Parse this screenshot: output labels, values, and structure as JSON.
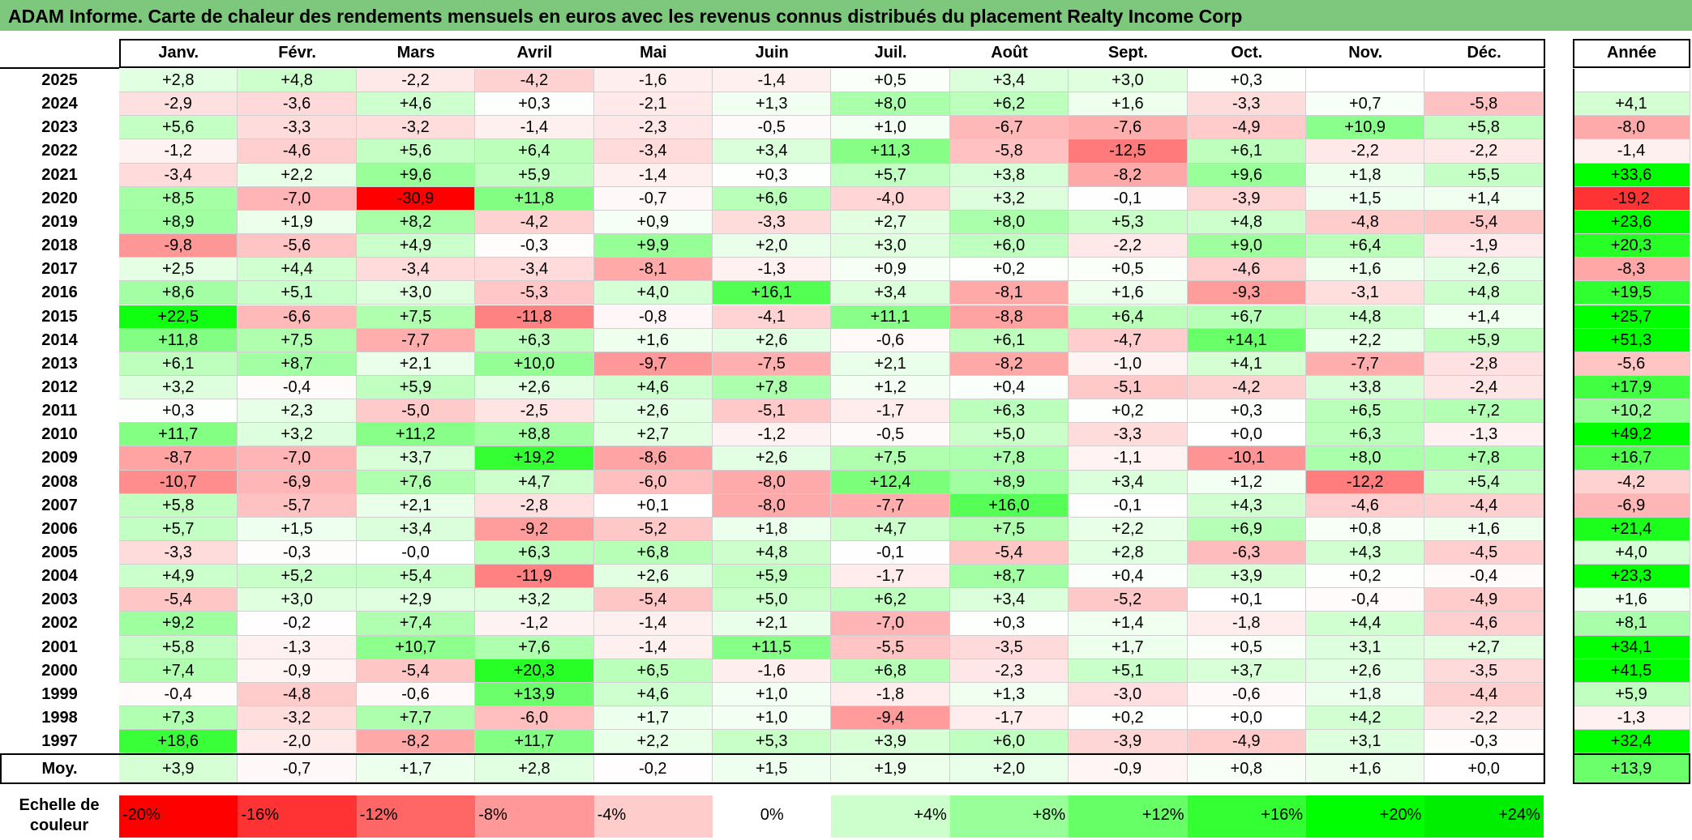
{
  "title": "ADAM Informe. Carte de chaleur des rendements mensuels en euros avec les revenus connus distribués du placement Realty Income Corp",
  "chart_data": {
    "type": "heatmap",
    "title": "ADAM Informe. Carte de chaleur des rendements mensuels en euros avec les revenus connus distribués du placement Realty Income Corp",
    "columns": [
      "Janv.",
      "Févr.",
      "Mars",
      "Avril",
      "Mai",
      "Juin",
      "Juil.",
      "Août",
      "Sept.",
      "Oct.",
      "Nov.",
      "Déc."
    ],
    "year_header": "Année",
    "average_label": "Moy.",
    "rows": [
      {
        "label": "2025",
        "values": [
          "+2,8",
          "+4,8",
          "-2,2",
          "-4,2",
          "-1,6",
          "-1,4",
          "+0,5",
          "+3,4",
          "+3,0",
          "+0,3",
          "",
          ""
        ],
        "year": ""
      },
      {
        "label": "2024",
        "values": [
          "-2,9",
          "-3,6",
          "+4,6",
          "+0,3",
          "-2,1",
          "+1,3",
          "+8,0",
          "+6,2",
          "+1,6",
          "-3,3",
          "+0,7",
          "-5,8"
        ],
        "year": "+4,1"
      },
      {
        "label": "2023",
        "values": [
          "+5,6",
          "-3,3",
          "-3,2",
          "-1,4",
          "-2,3",
          "-0,5",
          "+1,0",
          "-6,7",
          "-7,6",
          "-4,9",
          "+10,9",
          "+5,8"
        ],
        "year": "-8,0"
      },
      {
        "label": "2022",
        "values": [
          "-1,2",
          "-4,6",
          "+5,6",
          "+6,4",
          "-3,4",
          "+3,4",
          "+11,3",
          "-5,8",
          "-12,5",
          "+6,1",
          "-2,2",
          "-2,2"
        ],
        "year": "-1,4"
      },
      {
        "label": "2021",
        "values": [
          "-3,4",
          "+2,2",
          "+9,6",
          "+5,9",
          "-1,4",
          "+0,3",
          "+5,7",
          "+3,8",
          "-8,2",
          "+9,6",
          "+1,8",
          "+5,5"
        ],
        "year": "+33,6"
      },
      {
        "label": "2020",
        "values": [
          "+8,5",
          "-7,0",
          "-30,9",
          "+11,8",
          "-0,7",
          "+6,6",
          "-4,0",
          "+3,2",
          "-0,1",
          "-3,9",
          "+1,5",
          "+1,4"
        ],
        "year": "-19,2"
      },
      {
        "label": "2019",
        "values": [
          "+8,9",
          "+1,9",
          "+8,2",
          "-4,2",
          "+0,9",
          "-3,3",
          "+2,7",
          "+8,0",
          "+5,3",
          "+4,8",
          "-4,8",
          "-5,4"
        ],
        "year": "+23,6"
      },
      {
        "label": "2018",
        "values": [
          "-9,8",
          "-5,6",
          "+4,9",
          "-0,3",
          "+9,9",
          "+2,0",
          "+3,0",
          "+6,0",
          "-2,2",
          "+9,0",
          "+6,4",
          "-1,9"
        ],
        "year": "+20,3"
      },
      {
        "label": "2017",
        "values": [
          "+2,5",
          "+4,4",
          "-3,4",
          "-3,4",
          "-8,1",
          "-1,3",
          "+0,9",
          "+0,2",
          "+0,5",
          "-4,6",
          "+1,6",
          "+2,6"
        ],
        "year": "-8,3"
      },
      {
        "label": "2016",
        "values": [
          "+8,6",
          "+5,1",
          "+3,0",
          "-5,3",
          "+4,0",
          "+16,1",
          "+3,4",
          "-8,1",
          "+1,6",
          "-9,3",
          "-3,1",
          "+4,8"
        ],
        "year": "+19,5"
      },
      {
        "label": "2015",
        "values": [
          "+22,5",
          "-6,6",
          "+7,5",
          "-11,8",
          "-0,8",
          "-4,1",
          "+11,1",
          "-8,8",
          "+6,4",
          "+6,7",
          "+4,8",
          "+1,4"
        ],
        "year": "+25,7"
      },
      {
        "label": "2014",
        "values": [
          "+11,8",
          "+7,5",
          "-7,7",
          "+6,3",
          "+1,6",
          "+2,6",
          "-0,6",
          "+6,1",
          "-4,7",
          "+14,1",
          "+2,2",
          "+5,9"
        ],
        "year": "+51,3"
      },
      {
        "label": "2013",
        "values": [
          "+6,1",
          "+8,7",
          "+2,1",
          "+10,0",
          "-9,7",
          "-7,5",
          "+2,1",
          "-8,2",
          "-1,0",
          "+4,1",
          "-7,7",
          "-2,8"
        ],
        "year": "-5,6"
      },
      {
        "label": "2012",
        "values": [
          "+3,2",
          "-0,4",
          "+5,9",
          "+2,6",
          "+4,6",
          "+7,8",
          "+1,2",
          "+0,4",
          "-5,1",
          "-4,2",
          "+3,8",
          "-2,4"
        ],
        "year": "+17,9"
      },
      {
        "label": "2011",
        "values": [
          "+0,3",
          "+2,3",
          "-5,0",
          "-2,5",
          "+2,6",
          "-5,1",
          "-1,7",
          "+6,3",
          "+0,2",
          "+0,3",
          "+6,5",
          "+7,2"
        ],
        "year": "+10,2"
      },
      {
        "label": "2010",
        "values": [
          "+11,7",
          "+3,2",
          "+11,2",
          "+8,8",
          "+2,7",
          "-1,2",
          "-0,5",
          "+5,0",
          "-3,3",
          "+0,0",
          "+6,3",
          "-1,3"
        ],
        "year": "+49,2"
      },
      {
        "label": "2009",
        "values": [
          "-8,7",
          "-7,0",
          "+3,7",
          "+19,2",
          "-8,6",
          "+2,6",
          "+7,5",
          "+7,8",
          "-1,1",
          "-10,1",
          "+8,0",
          "+7,8"
        ],
        "year": "+16,7"
      },
      {
        "label": "2008",
        "values": [
          "-10,7",
          "-6,9",
          "+7,6",
          "+4,7",
          "-6,0",
          "-8,0",
          "+12,4",
          "+8,9",
          "+3,4",
          "+1,2",
          "-12,2",
          "+5,4"
        ],
        "year": "-4,2"
      },
      {
        "label": "2007",
        "values": [
          "+5,8",
          "-5,7",
          "+2,1",
          "-2,8",
          "+0,1",
          "-8,0",
          "-7,7",
          "+16,0",
          "-0,1",
          "+4,3",
          "-4,6",
          "-4,4"
        ],
        "year": "-6,9"
      },
      {
        "label": "2006",
        "values": [
          "+5,7",
          "+1,5",
          "+3,4",
          "-9,2",
          "-5,2",
          "+1,8",
          "+4,7",
          "+7,5",
          "+2,2",
          "+6,9",
          "+0,8",
          "+1,6"
        ],
        "year": "+21,4"
      },
      {
        "label": "2005",
        "values": [
          "-3,3",
          "-0,3",
          "-0,0",
          "+6,3",
          "+6,8",
          "+4,8",
          "-0,1",
          "-5,4",
          "+2,8",
          "-6,3",
          "+4,3",
          "-4,5"
        ],
        "year": "+4,0"
      },
      {
        "label": "2004",
        "values": [
          "+4,9",
          "+5,2",
          "+5,4",
          "-11,9",
          "+2,6",
          "+5,9",
          "-1,7",
          "+8,7",
          "+0,4",
          "+3,9",
          "+0,2",
          "-0,4"
        ],
        "year": "+23,3"
      },
      {
        "label": "2003",
        "values": [
          "-5,4",
          "+3,0",
          "+2,9",
          "+3,2",
          "-5,4",
          "+5,0",
          "+6,2",
          "+3,4",
          "-5,2",
          "+0,1",
          "-0,4",
          "-4,9"
        ],
        "year": "+1,6"
      },
      {
        "label": "2002",
        "values": [
          "+9,2",
          "-0,2",
          "+7,4",
          "-1,2",
          "-1,4",
          "+2,1",
          "-7,0",
          "+0,3",
          "+1,4",
          "-1,8",
          "+4,4",
          "-4,6"
        ],
        "year": "+8,1"
      },
      {
        "label": "2001",
        "values": [
          "+5,8",
          "-1,3",
          "+10,7",
          "+7,6",
          "-1,4",
          "+11,5",
          "-5,5",
          "-3,5",
          "+1,7",
          "+0,5",
          "+3,1",
          "+2,7"
        ],
        "year": "+34,1"
      },
      {
        "label": "2000",
        "values": [
          "+7,4",
          "-0,9",
          "-5,4",
          "+20,3",
          "+6,5",
          "-1,6",
          "+6,8",
          "-2,3",
          "+5,1",
          "+3,7",
          "+2,6",
          "-3,5"
        ],
        "year": "+41,5"
      },
      {
        "label": "1999",
        "values": [
          "-0,4",
          "-4,8",
          "-0,6",
          "+13,9",
          "+4,6",
          "+1,0",
          "-1,8",
          "+1,3",
          "-3,0",
          "-0,6",
          "+1,8",
          "-4,4"
        ],
        "year": "+5,9"
      },
      {
        "label": "1998",
        "values": [
          "+7,3",
          "-3,2",
          "+7,7",
          "-6,0",
          "+1,7",
          "+1,0",
          "-9,4",
          "-1,7",
          "+0,2",
          "+0,0",
          "+4,2",
          "-2,2"
        ],
        "year": "-1,3"
      },
      {
        "label": "1997",
        "values": [
          "+18,6",
          "-2,0",
          "-8,2",
          "+11,7",
          "+2,2",
          "+5,3",
          "+3,9",
          "+6,0",
          "-3,9",
          "-4,9",
          "+3,1",
          "-0,3"
        ],
        "year": "+32,4"
      }
    ],
    "average": {
      "values": [
        "+3,9",
        "-0,7",
        "+1,7",
        "+2,8",
        "-0,2",
        "+1,5",
        "+1,9",
        "+2,0",
        "-0,9",
        "+0,8",
        "+1,6",
        "+0,0"
      ],
      "year": "+13,9"
    },
    "scale_label": "Echelle de couleur",
    "scale": [
      {
        "label": "-20%",
        "value": -20,
        "color": "#ff0000"
      },
      {
        "label": "-16%",
        "value": -16,
        "color": "#ff3333"
      },
      {
        "label": "-12%",
        "value": -12,
        "color": "#ff6666"
      },
      {
        "label": "-8%",
        "value": -8,
        "color": "#ff9999"
      },
      {
        "label": "-4%",
        "value": -4,
        "color": "#ffcccc"
      },
      {
        "label": "0%",
        "value": 0,
        "color": "#ffffff"
      },
      {
        "label": "+4%",
        "value": 4,
        "color": "#ccffcc"
      },
      {
        "label": "+8%",
        "value": 8,
        "color": "#99ff99"
      },
      {
        "label": "+12%",
        "value": 12,
        "color": "#66ff66"
      },
      {
        "label": "+16%",
        "value": 16,
        "color": "#33ff33"
      },
      {
        "label": "+20%",
        "value": 20,
        "color": "#00ff00"
      },
      {
        "label": "+24%",
        "value": 24,
        "color": "#00ee00"
      }
    ]
  }
}
